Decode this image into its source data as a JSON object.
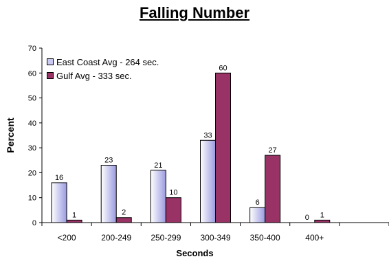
{
  "chart_data": {
    "type": "bar",
    "title": "Falling Number",
    "xlabel": "Seconds",
    "ylabel": "Percent",
    "ylim": [
      0,
      70
    ],
    "yticks": [
      0,
      10,
      20,
      30,
      40,
      50,
      60,
      70
    ],
    "categories": [
      "<200",
      "200-249",
      "250-299",
      "300-349",
      "350-400",
      "400+"
    ],
    "series": [
      {
        "name": "East Coast Avg - 264 sec.",
        "values": [
          16,
          23,
          21,
          33,
          6,
          0
        ],
        "color": "#c9c9f2"
      },
      {
        "name": "Gulf Avg - 333 sec.",
        "values": [
          1,
          2,
          10,
          60,
          27,
          1
        ],
        "color": "#993366"
      }
    ],
    "legend_position": "top-left",
    "grid": false
  }
}
